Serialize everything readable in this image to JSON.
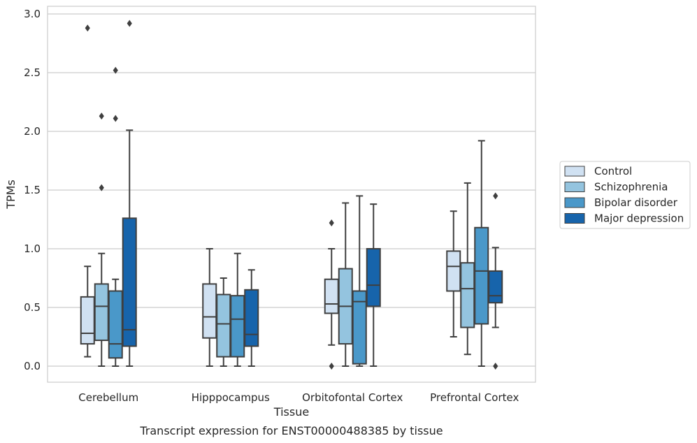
{
  "chart_data": {
    "type": "boxplot",
    "title": "",
    "caption": "Transcript expression for ENST00000488385 by tissue",
    "xlabel": "Tissue",
    "ylabel": "TPMs",
    "ylim": [
      -0.14,
      3.07
    ],
    "yticks": [
      "0.0",
      "0.5",
      "1.0",
      "1.5",
      "2.0",
      "2.5",
      "3.0"
    ],
    "grid": "horizontal",
    "legend_position": "right",
    "categories": [
      "Cerebellum",
      "Hipppocampus",
      "Orbitofontal Cortex",
      "Prefrontal Cortex"
    ],
    "series": [
      {
        "name": "Control",
        "color": "#d0e1f2",
        "boxes": [
          {
            "whislo": 0.08,
            "q1": 0.19,
            "med": 0.28,
            "q3": 0.59,
            "whishi": 0.85,
            "fliers": [
              2.88
            ]
          },
          {
            "whislo": 0.0,
            "q1": 0.24,
            "med": 0.42,
            "q3": 0.7,
            "whishi": 1.0,
            "fliers": []
          },
          {
            "whislo": 0.18,
            "q1": 0.45,
            "med": 0.53,
            "q3": 0.74,
            "whishi": 1.0,
            "fliers": [
              1.22,
              0.0
            ]
          },
          {
            "whislo": 0.25,
            "q1": 0.64,
            "med": 0.85,
            "q3": 0.98,
            "whishi": 1.32,
            "fliers": []
          }
        ]
      },
      {
        "name": "Schizophrenia",
        "color": "#94c4df",
        "boxes": [
          {
            "whislo": 0.0,
            "q1": 0.22,
            "med": 0.51,
            "q3": 0.7,
            "whishi": 0.96,
            "fliers": [
              2.13,
              1.52
            ]
          },
          {
            "whislo": 0.0,
            "q1": 0.08,
            "med": 0.36,
            "q3": 0.61,
            "whishi": 0.75,
            "fliers": []
          },
          {
            "whislo": 0.0,
            "q1": 0.19,
            "med": 0.51,
            "q3": 0.83,
            "whishi": 1.39,
            "fliers": []
          },
          {
            "whislo": 0.1,
            "q1": 0.33,
            "med": 0.66,
            "q3": 0.88,
            "whishi": 1.56,
            "fliers": []
          }
        ]
      },
      {
        "name": "Bipolar disorder",
        "color": "#4a98c9",
        "boxes": [
          {
            "whislo": 0.0,
            "q1": 0.07,
            "med": 0.19,
            "q3": 0.64,
            "whishi": 0.74,
            "fliers": [
              2.52,
              2.11
            ]
          },
          {
            "whislo": 0.0,
            "q1": 0.08,
            "med": 0.4,
            "q3": 0.6,
            "whishi": 0.96,
            "fliers": []
          },
          {
            "whislo": 0.0,
            "q1": 0.02,
            "med": 0.55,
            "q3": 0.64,
            "whishi": 1.45,
            "fliers": []
          },
          {
            "whislo": 0.0,
            "q1": 0.36,
            "med": 0.81,
            "q3": 1.18,
            "whishi": 1.92,
            "fliers": []
          }
        ]
      },
      {
        "name": "Major depression",
        "color": "#1764ab",
        "boxes": [
          {
            "whislo": 0.0,
            "q1": 0.17,
            "med": 0.31,
            "q3": 1.26,
            "whishi": 2.01,
            "fliers": [
              2.92
            ]
          },
          {
            "whislo": 0.0,
            "q1": 0.17,
            "med": 0.27,
            "q3": 0.65,
            "whishi": 0.82,
            "fliers": []
          },
          {
            "whislo": 0.0,
            "q1": 0.51,
            "med": 0.69,
            "q3": 1.0,
            "whishi": 1.38,
            "fliers": []
          },
          {
            "whislo": 0.33,
            "q1": 0.54,
            "med": 0.6,
            "q3": 0.81,
            "whishi": 1.01,
            "fliers": [
              1.45,
              0.0
            ]
          }
        ]
      }
    ]
  }
}
